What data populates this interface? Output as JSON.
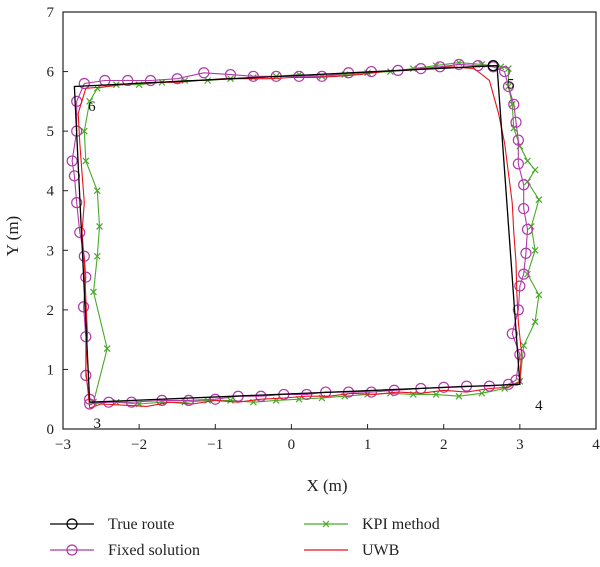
{
  "chart_data": {
    "type": "line",
    "xlabel": "X (m)",
    "ylabel": "Y (m)",
    "xlim": [
      -3,
      4
    ],
    "ylim": [
      0,
      7
    ],
    "xticks": [
      -3,
      -2,
      -1,
      0,
      1,
      2,
      3,
      4
    ],
    "yticks": [
      0,
      1,
      2,
      3,
      4,
      5,
      6,
      7
    ],
    "grid": false,
    "legend_position": "bottom",
    "corner_labels": [
      {
        "text": "3",
        "x": -2.55,
        "y": 0.1
      },
      {
        "text": "4",
        "x": 3.25,
        "y": 0.4
      },
      {
        "text": "5",
        "x": 2.88,
        "y": 5.8
      },
      {
        "text": "6",
        "x": -2.62,
        "y": 5.42
      }
    ],
    "series": [
      {
        "name": "True route",
        "color": "#000000",
        "marker": "circle",
        "x": [
          -2.65,
          3.0,
          2.7,
          -2.85,
          -2.65
        ],
        "y": [
          0.45,
          0.75,
          6.1,
          5.75,
          0.45
        ],
        "marker_points": [
          [
            2.65,
            6.1
          ]
        ]
      },
      {
        "name": "Fixed solution",
        "color": "#b03aa8",
        "marker": "circle",
        "x": [
          -2.65,
          -2.4,
          -2.1,
          -1.7,
          -1.35,
          -1.0,
          -0.7,
          -0.4,
          -0.1,
          0.2,
          0.45,
          0.75,
          1.05,
          1.35,
          1.7,
          2.0,
          2.3,
          2.6,
          2.85,
          2.95,
          3.0,
          2.9,
          2.98,
          3.0,
          3.05,
          3.08,
          3.1,
          3.05,
          3.05,
          2.98,
          2.98,
          2.95,
          2.92,
          2.85,
          2.8,
          2.65,
          2.45,
          2.2,
          1.95,
          1.7,
          1.4,
          1.05,
          0.75,
          0.4,
          0.1,
          -0.2,
          -0.5,
          -0.8,
          -1.15,
          -1.5,
          -1.85,
          -2.15,
          -2.45,
          -2.72,
          -2.82,
          -2.82,
          -2.88,
          -2.85,
          -2.82,
          -2.78,
          -2.72,
          -2.7,
          -2.73,
          -2.7,
          -2.7,
          -2.65
        ],
        "y": [
          0.42,
          0.45,
          0.45,
          0.48,
          0.48,
          0.5,
          0.55,
          0.55,
          0.58,
          0.58,
          0.62,
          0.62,
          0.62,
          0.65,
          0.68,
          0.7,
          0.72,
          0.72,
          0.75,
          0.82,
          1.25,
          1.6,
          2.0,
          2.4,
          2.6,
          2.95,
          3.35,
          3.7,
          4.1,
          4.45,
          4.85,
          5.15,
          5.45,
          5.75,
          6.0,
          6.08,
          6.1,
          6.12,
          6.08,
          6.05,
          6.02,
          6.0,
          5.98,
          5.92,
          5.92,
          5.92,
          5.92,
          5.95,
          5.98,
          5.88,
          5.85,
          5.85,
          5.85,
          5.8,
          5.5,
          5.0,
          4.5,
          4.25,
          3.8,
          3.3,
          2.9,
          2.55,
          2.05,
          1.55,
          0.9,
          0.5
        ]
      },
      {
        "name": "KPI method",
        "color": "#4aa82a",
        "marker": "x",
        "x": [
          -2.6,
          -2.3,
          -2.0,
          -1.7,
          -1.4,
          -1.1,
          -0.8,
          -0.5,
          -0.2,
          0.1,
          0.4,
          0.7,
          1.0,
          1.3,
          1.6,
          1.9,
          2.2,
          2.5,
          2.8,
          3.0,
          3.05,
          3.2,
          3.25,
          3.1,
          3.2,
          3.15,
          3.25,
          3.1,
          3.2,
          3.1,
          3.0,
          2.92,
          2.9,
          2.85,
          2.85,
          2.75,
          2.5,
          2.2,
          1.9,
          1.6,
          1.3,
          1.0,
          0.7,
          0.4,
          0.1,
          -0.2,
          -0.5,
          -0.8,
          -1.1,
          -1.4,
          -1.7,
          -2.0,
          -2.3,
          -2.55,
          -2.65,
          -2.72,
          -2.7,
          -2.55,
          -2.52,
          -2.55,
          -2.6,
          -2.42,
          -2.6
        ],
        "y": [
          0.45,
          0.45,
          0.42,
          0.45,
          0.45,
          0.48,
          0.48,
          0.45,
          0.48,
          0.5,
          0.52,
          0.55,
          0.58,
          0.6,
          0.58,
          0.58,
          0.55,
          0.6,
          0.68,
          0.8,
          1.4,
          1.8,
          2.25,
          2.6,
          3.0,
          3.4,
          3.85,
          4.15,
          4.35,
          4.5,
          4.75,
          5.05,
          5.45,
          5.75,
          6.05,
          6.08,
          6.12,
          6.15,
          6.1,
          6.05,
          6.0,
          5.98,
          5.95,
          5.92,
          5.95,
          5.92,
          5.9,
          5.88,
          5.85,
          5.85,
          5.82,
          5.78,
          5.78,
          5.72,
          5.5,
          5.0,
          4.5,
          4.0,
          3.4,
          2.9,
          2.3,
          1.35,
          0.45
        ]
      },
      {
        "name": "UWB",
        "color": "#e8141b",
        "marker": "none",
        "x": [
          -2.65,
          -2.5,
          -2.2,
          -1.9,
          -1.6,
          -1.3,
          -1.0,
          -0.7,
          -0.4,
          -0.1,
          0.2,
          0.5,
          0.8,
          1.1,
          1.4,
          1.7,
          2.0,
          2.3,
          2.6,
          2.85,
          3.0,
          3.02,
          2.98,
          2.96,
          2.95,
          2.92,
          2.9,
          2.85,
          2.8,
          2.72,
          2.6,
          2.4,
          2.1,
          1.8,
          1.5,
          1.2,
          0.9,
          0.6,
          0.3,
          0.0,
          -0.3,
          -0.6,
          -0.9,
          -1.2,
          -1.5,
          -1.8,
          -2.1,
          -2.4,
          -2.7,
          -2.8,
          -2.78,
          -2.75,
          -2.72,
          -2.75,
          -2.72,
          -2.7,
          -2.68,
          -2.7,
          -2.65
        ],
        "y": [
          0.35,
          0.42,
          0.4,
          0.38,
          0.45,
          0.42,
          0.48,
          0.45,
          0.5,
          0.52,
          0.55,
          0.55,
          0.6,
          0.58,
          0.62,
          0.6,
          0.65,
          0.62,
          0.68,
          0.7,
          0.8,
          1.3,
          1.8,
          2.3,
          2.8,
          3.3,
          3.8,
          4.3,
          4.8,
          5.3,
          5.85,
          6.05,
          6.08,
          6.05,
          6.02,
          6.0,
          5.95,
          5.92,
          5.9,
          5.9,
          5.88,
          5.88,
          5.88,
          5.85,
          5.82,
          5.82,
          5.8,
          5.75,
          5.72,
          5.3,
          4.8,
          4.3,
          3.8,
          3.3,
          2.8,
          2.2,
          1.6,
          1.0,
          0.35
        ]
      }
    ]
  }
}
